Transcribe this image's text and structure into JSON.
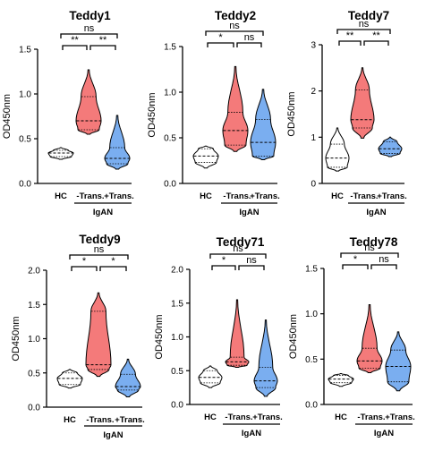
{
  "colors": {
    "hc": "#ffffff",
    "minus": "#f47a7a",
    "plus": "#7aaef0",
    "stroke": "#000000"
  },
  "chart_data": [
    {
      "type": "violin",
      "title": "Teddy1",
      "ylabel": "OD450nm",
      "ylim": [
        0,
        1.5
      ],
      "ticks": [
        "0.0",
        "0.5",
        "1.0",
        "1.5"
      ],
      "categories": [
        "HC",
        "-Trans.",
        "+Trans."
      ],
      "group_label": "IgAN",
      "series": [
        {
          "category": "HC",
          "min": 0.27,
          "max": 0.4,
          "q1": 0.3,
          "median": 0.34,
          "q3": 0.37
        },
        {
          "category": "-Trans.",
          "min": 0.55,
          "max": 1.27,
          "q1": 0.6,
          "median": 0.7,
          "q3": 0.97
        },
        {
          "category": "+Trans.",
          "min": 0.16,
          "max": 0.76,
          "q1": 0.22,
          "median": 0.28,
          "q3": 0.4
        }
      ],
      "comparisons": [
        {
          "pair": [
            "HC",
            "-Trans."
          ],
          "label": "**"
        },
        {
          "pair": [
            "-Trans.",
            "+Trans."
          ],
          "label": "**"
        },
        {
          "pair": [
            "HC",
            "+Trans."
          ],
          "label": "ns"
        }
      ]
    },
    {
      "type": "violin",
      "title": "Teddy2",
      "ylabel": "OD450nm",
      "ylim": [
        0,
        1.5
      ],
      "ticks": [
        "0.0",
        "0.5",
        "1.0",
        "1.5"
      ],
      "categories": [
        "HC",
        "-Trans.",
        "+Trans."
      ],
      "group_label": "IgAN",
      "series": [
        {
          "category": "HC",
          "min": 0.17,
          "max": 0.41,
          "q1": 0.23,
          "median": 0.3,
          "q3": 0.38
        },
        {
          "category": "-Trans.",
          "min": 0.35,
          "max": 1.28,
          "q1": 0.42,
          "median": 0.58,
          "q3": 0.78
        },
        {
          "category": "+Trans.",
          "min": 0.26,
          "max": 1.03,
          "q1": 0.3,
          "median": 0.45,
          "q3": 0.7
        }
      ],
      "comparisons": [
        {
          "pair": [
            "HC",
            "-Trans."
          ],
          "label": "*"
        },
        {
          "pair": [
            "-Trans.",
            "+Trans."
          ],
          "label": "ns"
        },
        {
          "pair": [
            "HC",
            "+Trans."
          ],
          "label": "ns"
        }
      ]
    },
    {
      "type": "violin",
      "title": "Teddy7",
      "ylabel": "OD450nm",
      "ylim": [
        0,
        3
      ],
      "ticks": [
        "0",
        "1",
        "2",
        "3"
      ],
      "categories": [
        "HC",
        "-Trans.",
        "+Trans."
      ],
      "group_label": "IgAN",
      "series": [
        {
          "category": "HC",
          "min": 0.27,
          "max": 1.2,
          "q1": 0.35,
          "median": 0.55,
          "q3": 0.85
        },
        {
          "category": "-Trans.",
          "min": 0.98,
          "max": 2.5,
          "q1": 1.2,
          "median": 1.38,
          "q3": 2.02
        },
        {
          "category": "+Trans.",
          "min": 0.58,
          "max": 1.0,
          "q1": 0.65,
          "median": 0.75,
          "q3": 0.9
        }
      ],
      "comparisons": [
        {
          "pair": [
            "HC",
            "-Trans."
          ],
          "label": "**"
        },
        {
          "pair": [
            "-Trans.",
            "+Trans."
          ],
          "label": "**"
        },
        {
          "pair": [
            "HC",
            "+Trans."
          ],
          "label": "ns"
        }
      ]
    },
    {
      "type": "violin",
      "title": "Teddy9",
      "ylabel": "OD450nm",
      "ylim": [
        0,
        2
      ],
      "ticks": [
        "0.0",
        "0.5",
        "1.0",
        "1.5",
        "2.0"
      ],
      "categories": [
        "HC",
        "-Trans.",
        "+Trans."
      ],
      "group_label": "IgAN",
      "series": [
        {
          "category": "HC",
          "min": 0.28,
          "max": 0.55,
          "q1": 0.33,
          "median": 0.42,
          "q3": 0.5
        },
        {
          "category": "-Trans.",
          "min": 0.45,
          "max": 1.67,
          "q1": 0.55,
          "median": 0.62,
          "q3": 1.4
        },
        {
          "category": "+Trans.",
          "min": 0.15,
          "max": 0.7,
          "q1": 0.25,
          "median": 0.3,
          "q3": 0.48
        }
      ],
      "comparisons": [
        {
          "pair": [
            "HC",
            "-Trans."
          ],
          "label": "*"
        },
        {
          "pair": [
            "-Trans.",
            "+Trans."
          ],
          "label": "*"
        },
        {
          "pair": [
            "HC",
            "+Trans."
          ],
          "label": "ns"
        }
      ]
    },
    {
      "type": "violin",
      "title": "Teddy71",
      "ylabel": "OD450nm",
      "ylim": [
        0,
        2
      ],
      "ticks": [
        "0.0",
        "0.5",
        "1.0",
        "1.5",
        "2.0"
      ],
      "categories": [
        "HC",
        "-Trans.",
        "+Trans."
      ],
      "group_label": "IgAN",
      "series": [
        {
          "category": "HC",
          "min": 0.25,
          "max": 0.57,
          "q1": 0.32,
          "median": 0.4,
          "q3": 0.5
        },
        {
          "category": "-Trans.",
          "min": 0.55,
          "max": 1.55,
          "q1": 0.58,
          "median": 0.63,
          "q3": 0.7
        },
        {
          "category": "+Trans.",
          "min": 0.12,
          "max": 1.25,
          "q1": 0.25,
          "median": 0.35,
          "q3": 0.55
        }
      ],
      "comparisons": [
        {
          "pair": [
            "HC",
            "-Trans."
          ],
          "label": "*"
        },
        {
          "pair": [
            "-Trans.",
            "+Trans."
          ],
          "label": "ns"
        },
        {
          "pair": [
            "HC",
            "+Trans."
          ],
          "label": "ns"
        }
      ]
    },
    {
      "type": "violin",
      "title": "Teddy78",
      "ylabel": "OD450nm",
      "ylim": [
        0,
        1.5
      ],
      "ticks": [
        "0.0",
        "0.5",
        "1.0",
        "1.5"
      ],
      "categories": [
        "HC",
        "-Trans.",
        "+Trans."
      ],
      "group_label": "IgAN",
      "series": [
        {
          "category": "HC",
          "min": 0.2,
          "max": 0.34,
          "q1": 0.24,
          "median": 0.28,
          "q3": 0.32
        },
        {
          "category": "-Trans.",
          "min": 0.35,
          "max": 1.1,
          "q1": 0.4,
          "median": 0.48,
          "q3": 0.62
        },
        {
          "category": "+Trans.",
          "min": 0.15,
          "max": 0.8,
          "q1": 0.25,
          "median": 0.42,
          "q3": 0.6
        }
      ],
      "comparisons": [
        {
          "pair": [
            "HC",
            "-Trans."
          ],
          "label": "*"
        },
        {
          "pair": [
            "-Trans.",
            "+Trans."
          ],
          "label": "ns"
        },
        {
          "pair": [
            "HC",
            "+Trans."
          ],
          "label": "ns"
        }
      ]
    }
  ]
}
